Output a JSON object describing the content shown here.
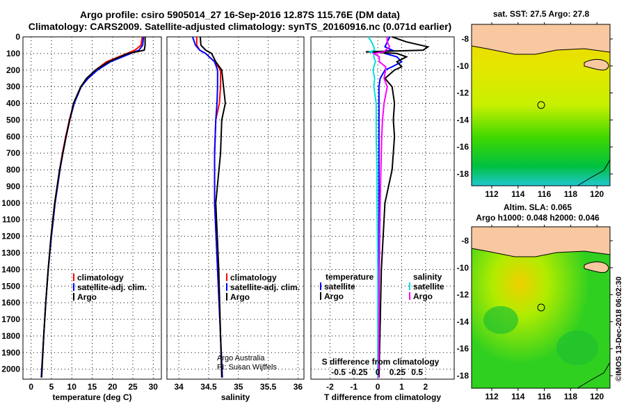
{
  "chart_data": [
    {
      "type": "line",
      "title": "Argo profile: csiro 5905014_27 16-Sep-2016 12.87S 115.76E (DM data)",
      "subtitle": "Climatology: CARS2009. Satellite-adjusted climatology: synTS_20160916.nc (0.071d earlier)",
      "xlabel": "temperature (deg C)",
      "xlim": [
        -2,
        32
      ],
      "xticks": [
        0,
        5,
        10,
        15,
        20,
        25,
        30
      ],
      "ylabel": "",
      "ylim": [
        0,
        2060
      ],
      "yticks": [
        0,
        100,
        200,
        300,
        400,
        500,
        600,
        700,
        800,
        900,
        1000,
        1100,
        1200,
        1300,
        1400,
        1500,
        1600,
        1700,
        1800,
        1900,
        2000
      ],
      "legend": [
        "climatology",
        "satellite-adj. clim.",
        "Argo"
      ],
      "legend_placement": "lower-right",
      "depth": [
        0,
        50,
        80,
        100,
        150,
        200,
        250,
        300,
        400,
        500,
        600,
        700,
        800,
        1000,
        1200,
        1400,
        1600,
        1800,
        2050
      ],
      "series": [
        {
          "name": "climatology",
          "color": "#ff0000",
          "values": [
            27.3,
            27.0,
            25.5,
            23.5,
            18.5,
            15.8,
            13.8,
            12.3,
            10.5,
            9.4,
            8.5,
            7.7,
            7.0,
            5.8,
            4.9,
            4.2,
            3.6,
            3.1,
            2.5
          ]
        },
        {
          "name": "satellite-adj. clim.",
          "color": "#0000ff",
          "values": [
            27.6,
            27.4,
            26.5,
            24.5,
            19.5,
            16.3,
            14.0,
            12.3,
            10.6,
            9.5,
            8.6,
            7.8,
            7.1,
            5.9,
            5.0,
            4.2,
            3.6,
            3.1,
            2.5
          ]
        },
        {
          "name": "Argo",
          "color": "#000000",
          "values": [
            28.0,
            28.0,
            27.8,
            23.8,
            19.0,
            15.8,
            13.6,
            12.2,
            10.4,
            9.5,
            8.6,
            7.8,
            7.0,
            5.8,
            4.9,
            4.2,
            3.6,
            3.1,
            2.6
          ]
        }
      ]
    },
    {
      "type": "line",
      "xlabel": "salinity",
      "xlim": [
        33.8,
        36.1
      ],
      "xticks": [
        34,
        34.5,
        35,
        35.5,
        36
      ],
      "legend": [
        "climatology",
        "satellite-adj. clim.",
        "Argo"
      ],
      "legend_placement": "lower-right",
      "annotation": [
        "Argo Australia",
        "PI: Susan Wijffels"
      ],
      "depth": [
        0,
        50,
        80,
        100,
        150,
        200,
        300,
        400,
        500,
        700,
        1000,
        1400,
        1800,
        2050
      ],
      "series": [
        {
          "name": "climatology",
          "color": "#ff0000",
          "values": [
            34.3,
            34.3,
            34.35,
            34.45,
            34.6,
            34.7,
            34.7,
            34.68,
            34.62,
            34.6,
            34.6,
            34.65,
            34.7,
            34.73
          ]
        },
        {
          "name": "satellite-adj. clim.",
          "color": "#0000ff",
          "values": [
            34.23,
            34.28,
            34.35,
            34.45,
            34.6,
            34.65,
            34.65,
            34.64,
            34.62,
            34.6,
            34.6,
            34.65,
            34.7,
            34.73
          ]
        },
        {
          "name": "Argo",
          "color": "#000000",
          "values": [
            34.36,
            34.37,
            34.45,
            34.55,
            34.62,
            34.72,
            34.75,
            34.78,
            34.72,
            34.7,
            34.62,
            34.67,
            34.7,
            34.72
          ]
        }
      ]
    },
    {
      "type": "line",
      "xlabel": "T difference from climatology",
      "xlim": [
        -2.8,
        3.2
      ],
      "xticks": [
        -2,
        -1,
        0,
        1,
        2
      ],
      "secondary_xlabel": "S difference from climatology",
      "secondary_xticks": [
        -0.5,
        -0.25,
        0,
        0.25,
        0.5
      ],
      "legend_temperature": {
        "title": "temperature",
        "items": [
          "satellite",
          "Argo"
        ]
      },
      "legend_salinity": {
        "title": "salinity",
        "items": [
          "satellite",
          "Argo"
        ]
      },
      "depth": [
        0,
        30,
        60,
        80,
        90,
        100,
        120,
        150,
        180,
        200,
        250,
        300,
        400,
        500,
        600,
        800,
        1000,
        1400,
        2050
      ],
      "series": [
        {
          "name": "T satellite",
          "color": "#0000ff",
          "values": [
            0.5,
            0.4,
            0.3,
            0.6,
            0.2,
            0.3,
            0.8,
            1.0,
            0.6,
            0.3,
            0.1,
            0.05,
            0.05,
            0.05,
            0.05,
            0.05,
            0.05,
            0.05,
            0.05
          ]
        },
        {
          "name": "T Argo",
          "color": "#000000",
          "values": [
            0.6,
            1.2,
            2.1,
            1.9,
            -0.5,
            0.8,
            1.2,
            0.8,
            1.0,
            0.7,
            0.3,
            0.6,
            0.7,
            0.65,
            0.7,
            0.6,
            0.3,
            0.15,
            0.05
          ]
        },
        {
          "name": "S satellite",
          "color": "#00e0e0",
          "values": [
            -0.12,
            -0.08,
            -0.05,
            -0.04,
            -0.1,
            -0.05,
            -0.05,
            -0.03,
            -0.05,
            -0.06,
            -0.04,
            -0.05,
            -0.02,
            -0.02,
            -0.02,
            -0.01,
            -0.01,
            0,
            0
          ]
        },
        {
          "name": "S Argo",
          "color": "#ff00ff",
          "values": [
            0.12,
            0.12,
            0.15,
            0.1,
            0.08,
            -0.05,
            0.02,
            0.02,
            0.1,
            0.1,
            0.08,
            0.12,
            0.08,
            0.06,
            0.05,
            0.04,
            0.03,
            0.02,
            0.01
          ]
        }
      ]
    }
  ],
  "maps": [
    {
      "title": "sat. SST: 27.5 Argo: 27.8",
      "lon_ticks": [
        112,
        114,
        116,
        118,
        120
      ],
      "lat_ticks": [
        -8,
        -10,
        -12,
        -14,
        -16,
        -18
      ]
    },
    {
      "title1": "Altim. SLA: 0.065",
      "title2": "Argo h1000: 0.048 h2000: 0.046",
      "lon_ticks": [
        112,
        114,
        116,
        118,
        120
      ],
      "lat_ticks": [
        -8,
        -10,
        -12,
        -14,
        -16,
        -18
      ]
    }
  ],
  "profile_location": {
    "lon": 115.76,
    "lat": -12.87
  },
  "credit": "©IMOS 13-Dec-2018 06:02:30"
}
